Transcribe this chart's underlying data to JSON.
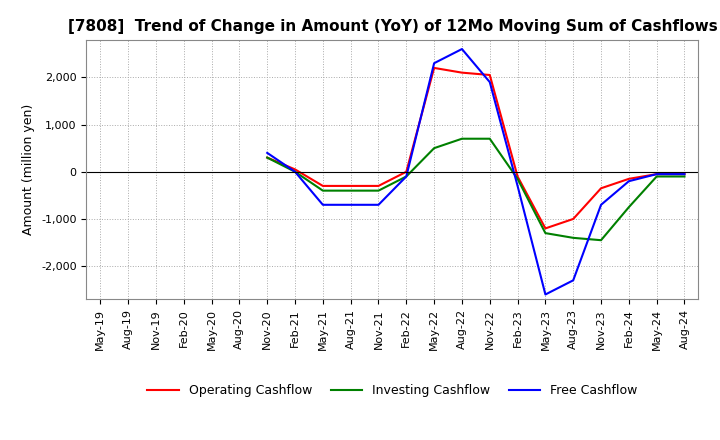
{
  "title": "[7808]  Trend of Change in Amount (YoY) of 12Mo Moving Sum of Cashflows",
  "ylabel": "Amount (million yen)",
  "x_labels": [
    "May-19",
    "Aug-19",
    "Nov-19",
    "Feb-20",
    "May-20",
    "Aug-20",
    "Nov-20",
    "Feb-21",
    "May-21",
    "Aug-21",
    "Nov-21",
    "Feb-22",
    "May-22",
    "Aug-22",
    "Nov-22",
    "Feb-23",
    "May-23",
    "Aug-23",
    "Nov-23",
    "Feb-24",
    "May-24",
    "Aug-24"
  ],
  "operating_cashflow": [
    null,
    null,
    null,
    null,
    null,
    null,
    300,
    50,
    -300,
    -300,
    -300,
    0,
    2200,
    2100,
    2050,
    -100,
    -1200,
    -1000,
    -350,
    -150,
    -50,
    -50
  ],
  "investing_cashflow": [
    null,
    null,
    null,
    null,
    null,
    null,
    300,
    0,
    -400,
    -400,
    -400,
    -100,
    500,
    700,
    700,
    -150,
    -1300,
    -1400,
    -1450,
    -750,
    -100,
    -100
  ],
  "free_cashflow": [
    null,
    null,
    null,
    null,
    null,
    null,
    400,
    0,
    -700,
    -700,
    -700,
    -100,
    2300,
    2600,
    1900,
    -300,
    -2600,
    -2300,
    -700,
    -200,
    -50,
    -50
  ],
  "operating_color": "#ff0000",
  "investing_color": "#008000",
  "free_color": "#0000ff",
  "ylim": [
    -2700,
    2800
  ],
  "yticks": [
    -2000,
    -1000,
    0,
    1000,
    2000
  ],
  "grid_color": "#aaaaaa",
  "background_color": "#ffffff"
}
